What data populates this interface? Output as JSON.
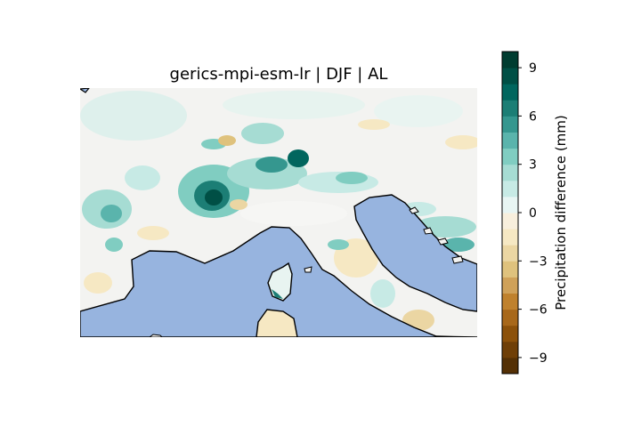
{
  "title": "gerics-mpi-esm-lr | DJF | AL",
  "colorbar": {
    "label": "Precipitation difference (mm)",
    "ticks": [
      "9",
      "6",
      "3",
      "0",
      "−3",
      "−6",
      "−9"
    ],
    "tick_values": [
      9,
      6,
      3,
      0,
      -3,
      -6,
      -9
    ],
    "range": [
      -10,
      10
    ],
    "levels": 20,
    "colors": [
      "#543005",
      "#6f3f07",
      "#8c510a",
      "#a8681a",
      "#bf812d",
      "#cfa159",
      "#dfc27d",
      "#ebd6a3",
      "#f6e8c3",
      "#f8efdd",
      "#e8f5f3",
      "#c7eae5",
      "#a6dcd3",
      "#80cdc1",
      "#5ab4ac",
      "#35978f",
      "#1c7e75",
      "#01665e",
      "#004f45",
      "#003c30"
    ]
  },
  "map": {
    "region": "Alpine region (AL)",
    "ocean_color": "#97b4df",
    "coastline_color": "#000000"
  }
}
